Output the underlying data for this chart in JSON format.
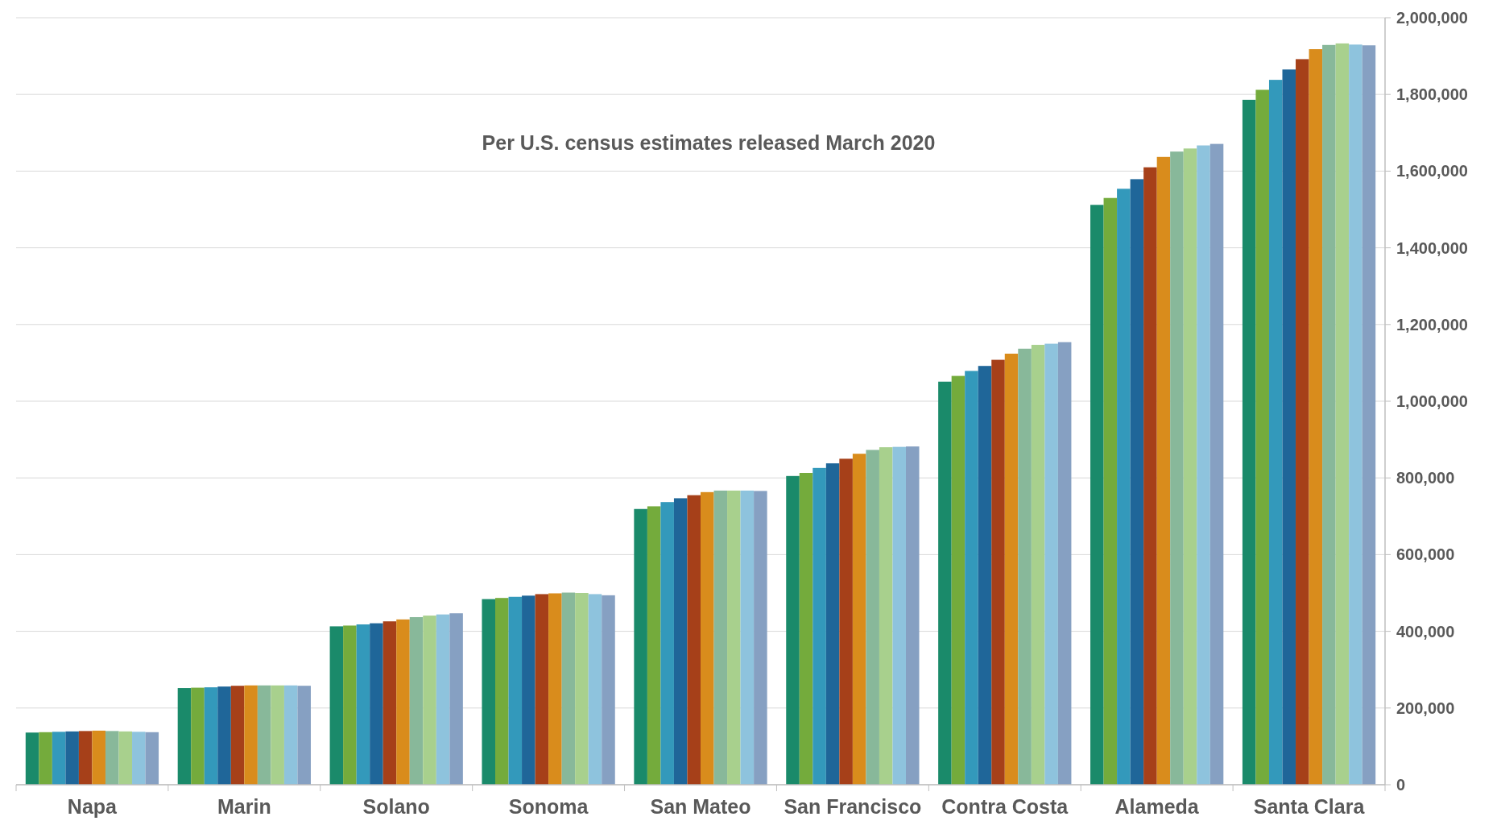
{
  "chart_data": {
    "type": "bar",
    "annotations": [
      "Per U.S. census estimates released March 2020"
    ],
    "categories": [
      "Napa",
      "Marin",
      "Solano",
      "Sonoma",
      "San Mateo",
      "San Francisco",
      "Contra Costa",
      "Alameda",
      "Santa Clara"
    ],
    "series": [
      {
        "color": "#1a8a6a",
        "values": [
          136000,
          252000,
          413000,
          484000,
          719000,
          805000,
          1051000,
          1512000,
          1786000
        ]
      },
      {
        "color": "#74ab3c",
        "values": [
          137000,
          253000,
          415000,
          487000,
          726000,
          813000,
          1066000,
          1530000,
          1812000
        ]
      },
      {
        "color": "#3399bb",
        "values": [
          138000,
          254000,
          418000,
          490000,
          737000,
          826000,
          1079000,
          1554000,
          1838000
        ]
      },
      {
        "color": "#1f6699",
        "values": [
          139000,
          256000,
          421000,
          493000,
          747000,
          838000,
          1092000,
          1579000,
          1865000
        ]
      },
      {
        "color": "#a64019",
        "values": [
          140000,
          258000,
          426000,
          497000,
          755000,
          850000,
          1108000,
          1610000,
          1892000
        ]
      },
      {
        "color": "#d98c1c",
        "values": [
          141000,
          259000,
          431000,
          499000,
          763000,
          863000,
          1124000,
          1637000,
          1918000
        ]
      },
      {
        "color": "#88b89a",
        "values": [
          140000,
          259000,
          437000,
          501000,
          767000,
          873000,
          1137000,
          1651000,
          1929000
        ]
      },
      {
        "color": "#a8d08d",
        "values": [
          139000,
          259000,
          441000,
          500000,
          767000,
          880000,
          1147000,
          1659000,
          1933000
        ]
      },
      {
        "color": "#8ec3dd",
        "values": [
          138000,
          259000,
          444000,
          497000,
          767000,
          881000,
          1150000,
          1667000,
          1930000
        ]
      },
      {
        "color": "#86a0c2",
        "values": [
          137000,
          258000,
          447000,
          494000,
          766000,
          882000,
          1154000,
          1671000,
          1928000
        ]
      }
    ],
    "ylim": [
      0,
      2000000
    ],
    "yticks": [
      {
        "value": 0,
        "label": "0"
      },
      {
        "value": 200000,
        "label": "200,000"
      },
      {
        "value": 400000,
        "label": "400,000"
      },
      {
        "value": 600000,
        "label": "600,000"
      },
      {
        "value": 800000,
        "label": "800,000"
      },
      {
        "value": 1000000,
        "label": "1,000,000"
      },
      {
        "value": 1200000,
        "label": "1,200,000"
      },
      {
        "value": 1400000,
        "label": "1,400,000"
      },
      {
        "value": 1600000,
        "label": "1,600,000"
      },
      {
        "value": 1800000,
        "label": "1,800,000"
      },
      {
        "value": 2000000,
        "label": "2,000,000"
      }
    ],
    "grid": "y"
  }
}
